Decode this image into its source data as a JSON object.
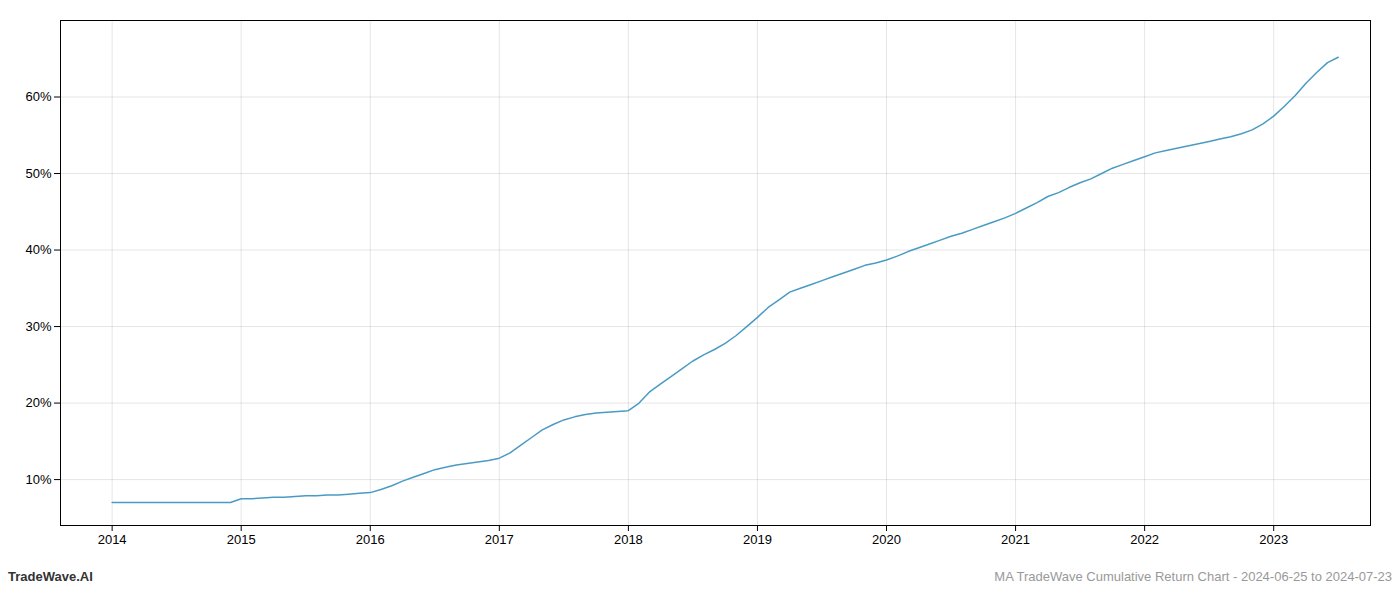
{
  "chart_data": {
    "type": "line",
    "x": [
      2014.0,
      2014.083,
      2014.167,
      2014.25,
      2014.333,
      2014.417,
      2014.5,
      2014.583,
      2014.667,
      2014.75,
      2014.833,
      2014.917,
      2015.0,
      2015.083,
      2015.167,
      2015.25,
      2015.333,
      2015.417,
      2015.5,
      2015.583,
      2015.667,
      2015.75,
      2015.833,
      2015.917,
      2016.0,
      2016.083,
      2016.167,
      2016.25,
      2016.333,
      2016.417,
      2016.5,
      2016.583,
      2016.667,
      2016.75,
      2016.833,
      2016.917,
      2017.0,
      2017.083,
      2017.167,
      2017.25,
      2017.333,
      2017.417,
      2017.5,
      2017.583,
      2017.667,
      2017.75,
      2017.833,
      2017.917,
      2018.0,
      2018.083,
      2018.167,
      2018.25,
      2018.333,
      2018.417,
      2018.5,
      2018.583,
      2018.667,
      2018.75,
      2018.833,
      2018.917,
      2019.0,
      2019.083,
      2019.167,
      2019.25,
      2019.333,
      2019.417,
      2019.5,
      2019.583,
      2019.667,
      2019.75,
      2019.833,
      2019.917,
      2020.0,
      2020.083,
      2020.167,
      2020.25,
      2020.333,
      2020.417,
      2020.5,
      2020.583,
      2020.667,
      2020.75,
      2020.833,
      2020.917,
      2021.0,
      2021.083,
      2021.167,
      2021.25,
      2021.333,
      2021.417,
      2021.5,
      2021.583,
      2021.667,
      2021.75,
      2021.833,
      2021.917,
      2022.0,
      2022.083,
      2022.167,
      2022.25,
      2022.333,
      2022.417,
      2022.5,
      2022.583,
      2022.667,
      2022.75,
      2022.833,
      2022.917,
      2023.0,
      2023.083,
      2023.167,
      2023.25,
      2023.333,
      2023.417,
      2023.5
    ],
    "values": [
      7.0,
      7.0,
      7.0,
      7.0,
      7.0,
      7.0,
      7.0,
      7.0,
      7.0,
      7.0,
      7.0,
      7.0,
      7.5,
      7.5,
      7.6,
      7.7,
      7.7,
      7.8,
      7.9,
      7.9,
      8.0,
      8.0,
      8.1,
      8.2,
      8.3,
      8.7,
      9.2,
      9.8,
      10.3,
      10.8,
      11.3,
      11.6,
      11.9,
      12.1,
      12.3,
      12.5,
      12.8,
      13.5,
      14.5,
      15.5,
      16.5,
      17.2,
      17.8,
      18.2,
      18.5,
      18.7,
      18.8,
      18.9,
      19.0,
      20.0,
      21.5,
      22.5,
      23.5,
      24.5,
      25.5,
      26.3,
      27.0,
      27.8,
      28.8,
      30.0,
      31.2,
      32.5,
      33.5,
      34.5,
      35.0,
      35.5,
      36.0,
      36.5,
      37.0,
      37.5,
      38.0,
      38.3,
      38.7,
      39.2,
      39.8,
      40.3,
      40.8,
      41.3,
      41.8,
      42.2,
      42.7,
      43.2,
      43.7,
      44.2,
      44.8,
      45.5,
      46.2,
      47.0,
      47.5,
      48.2,
      48.8,
      49.3,
      50.0,
      50.7,
      51.2,
      51.7,
      52.2,
      52.7,
      53.0,
      53.3,
      53.6,
      53.9,
      54.2,
      54.5,
      54.8,
      55.2,
      55.7,
      56.5,
      57.5,
      58.8,
      60.2,
      61.8,
      63.2,
      64.5,
      65.2
    ],
    "color": "#4a9bc4",
    "xlim": [
      2013.6,
      2023.75
    ],
    "xticks": [
      2014,
      2015,
      2016,
      2017,
      2018,
      2019,
      2020,
      2021,
      2022,
      2023
    ],
    "ylim": [
      4,
      70
    ],
    "yticks": [
      {
        "value": 10,
        "label": "10%"
      },
      {
        "value": 20,
        "label": "20%"
      },
      {
        "value": 30,
        "label": "30%"
      },
      {
        "value": 40,
        "label": "40%"
      },
      {
        "value": 50,
        "label": "50%"
      },
      {
        "value": 60,
        "label": "60%"
      }
    ],
    "grid": true,
    "annotations": [
      "TradeWave.AI",
      "MA TradeWave Cumulative Return Chart - 2024-06-25 to 2024-07-23"
    ]
  }
}
